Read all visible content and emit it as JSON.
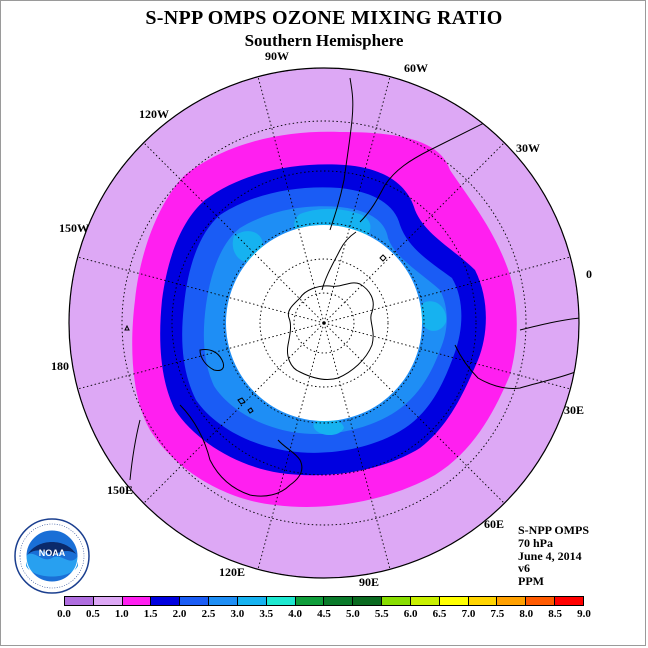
{
  "title": "S-NPP OMPS OZONE MIXING RATIO",
  "subtitle": "Southern Hemisphere",
  "longitude_labels": [
    {
      "text": "90W"
    },
    {
      "text": "60W"
    },
    {
      "text": "30W"
    },
    {
      "text": "0"
    },
    {
      "text": "30E"
    },
    {
      "text": "60E"
    },
    {
      "text": "90E"
    },
    {
      "text": "120E"
    },
    {
      "text": "150E"
    },
    {
      "text": "180"
    },
    {
      "text": "150W"
    },
    {
      "text": "120W"
    }
  ],
  "info": {
    "instrument": "S-NPP OMPS",
    "pressure": "70 hPa",
    "date": "June 4, 2014",
    "version": "v6",
    "units": "PPM"
  },
  "logo": {
    "text": "NOAA",
    "ring_text": "NATIONAL OCEANIC AND ATMOSPHERIC ADMINISTRATION · U.S. DEPARTMENT OF COMMERCE"
  },
  "colorbar": {
    "labels": [
      "0.0",
      "0.5",
      "1.0",
      "1.5",
      "2.0",
      "2.5",
      "3.0",
      "3.5",
      "4.0",
      "4.5",
      "5.0",
      "5.5",
      "6.0",
      "6.5",
      "7.0",
      "7.5",
      "8.0",
      "8.5",
      "9.0"
    ],
    "colors": [
      "#b06ee0",
      "#dda8f5",
      "#ff1ff0",
      "#0000e0",
      "#1a5cf5",
      "#1e8ef5",
      "#16b2f0",
      "#1ee8d0",
      "#0f9d3a",
      "#0a7a2a",
      "#0a6a20",
      "#88dd00",
      "#c8f000",
      "#ffff00",
      "#ffd400",
      "#ffa000",
      "#ff5a00",
      "#ff0000",
      "#9a5a2a"
    ]
  },
  "field_colors": {
    "background_band": "#dda8f5",
    "band_1_0": "#ff1ff0",
    "band_1_5": "#0000e0",
    "band_2_0": "#1a5cf5",
    "band_2_5": "#1e8ef5",
    "band_3_0": "#16b2f0",
    "no_data": "#ffffff"
  }
}
